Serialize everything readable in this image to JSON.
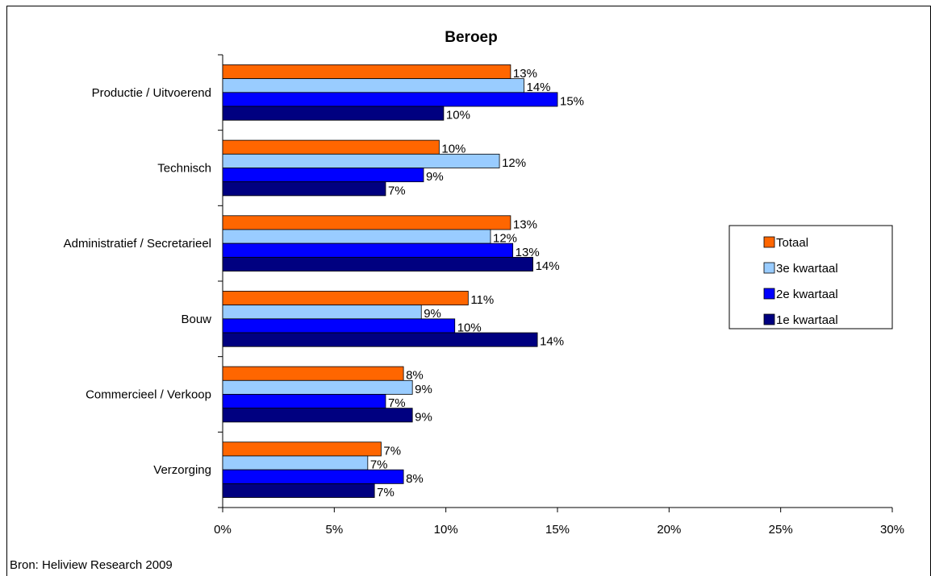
{
  "chart_data": {
    "type": "bar",
    "orientation": "horizontal",
    "title": "Beroep",
    "categories": [
      "Productie / Uitvoerend",
      "Technisch",
      "Administratief / Secretarieel",
      "Bouw",
      "Commercieel / Verkoop",
      "Verzorging"
    ],
    "series": [
      {
        "name": "Totaal",
        "color": "#FF6600",
        "values": [
          12.9,
          9.7,
          12.9,
          11.0,
          8.1,
          7.1
        ],
        "labels": [
          "13%",
          "10%",
          "13%",
          "11%",
          "8%",
          "7%"
        ]
      },
      {
        "name": "3e kwartaal",
        "color": "#99CCFF",
        "values": [
          13.5,
          12.4,
          12.0,
          8.9,
          8.5,
          6.5
        ],
        "labels": [
          "14%",
          "12%",
          "12%",
          "9%",
          "9%",
          "7%"
        ]
      },
      {
        "name": "2e kwartaal",
        "color": "#0000FF",
        "values": [
          15.0,
          9.0,
          13.0,
          10.4,
          7.3,
          8.1
        ],
        "labels": [
          "15%",
          "9%",
          "13%",
          "10%",
          "7%",
          "8%"
        ]
      },
      {
        "name": "1e kwartaal",
        "color": "#000080",
        "values": [
          9.9,
          7.3,
          13.9,
          14.1,
          8.5,
          6.8
        ],
        "labels": [
          "10%",
          "7%",
          "14%",
          "14%",
          "9%",
          "7%"
        ]
      }
    ],
    "xlim": [
      0,
      30
    ],
    "xticks": [
      "0%",
      "5%",
      "10%",
      "15%",
      "20%",
      "25%",
      "30%"
    ],
    "xlabel": "",
    "ylabel": "",
    "grid": false,
    "legend_position": "right"
  },
  "footer": {
    "source": "Bron: Heliview Research 2009"
  }
}
